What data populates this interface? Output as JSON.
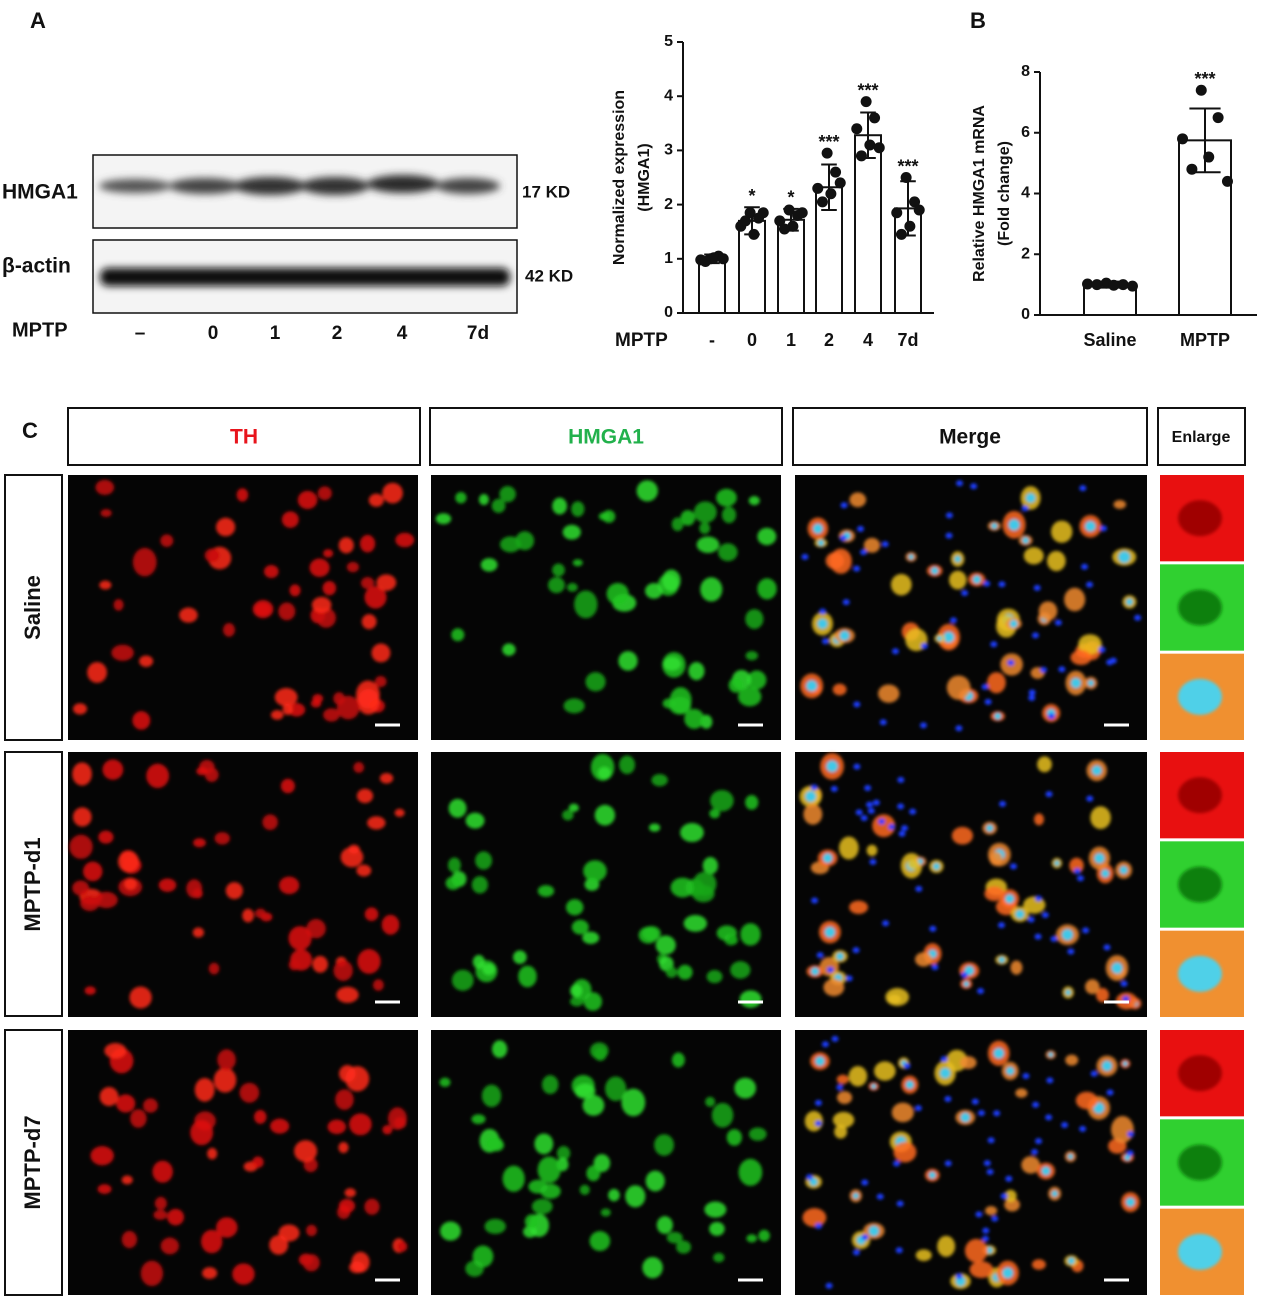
{
  "panel_labels": [
    "A",
    "B",
    "C"
  ],
  "blot": {
    "rows": [
      {
        "name": "HMGA1",
        "size": "17 KD"
      },
      {
        "name": "β-actin",
        "size": "42 KD"
      }
    ],
    "treatment": "MPTP",
    "lanes": [
      "–",
      "0",
      "1",
      "2",
      "4",
      "7d"
    ]
  },
  "chart_data": [
    {
      "type": "bar",
      "ylabel": [
        "Normalized expression",
        "(HMGA1)"
      ],
      "xlabel": "MPTP",
      "categories": [
        "-",
        "0",
        "1",
        "2",
        "4",
        "7d"
      ],
      "values": [
        1.0,
        1.7,
        1.72,
        2.32,
        3.28,
        1.93
      ],
      "errors": [
        0.08,
        0.25,
        0.2,
        0.42,
        0.42,
        0.5
      ],
      "significance": [
        null,
        "*",
        "*",
        "***",
        "***",
        "***"
      ],
      "points": [
        [
          1.0,
          1.05,
          0.98,
          1.02,
          0.95,
          1.0
        ],
        [
          1.85,
          1.75,
          1.6,
          1.45,
          1.7,
          1.85
        ],
        [
          1.9,
          1.8,
          1.7,
          1.6,
          1.55,
          1.85
        ],
        [
          2.95,
          2.6,
          2.3,
          2.2,
          2.05,
          2.4
        ],
        [
          3.9,
          3.6,
          3.4,
          3.1,
          2.9,
          3.05
        ],
        [
          2.5,
          2.05,
          1.85,
          1.6,
          1.45,
          1.9
        ]
      ],
      "color": "#ffffff",
      "ylim": [
        0,
        5
      ],
      "yticks": [
        0,
        1,
        2,
        3,
        4,
        5
      ]
    },
    {
      "type": "bar",
      "ylabel": [
        "Relative HMGA1 mRNA",
        "(Fold change)"
      ],
      "categories": [
        "Saline",
        "MPTP"
      ],
      "values": [
        1.0,
        5.75
      ],
      "errors": [
        0.1,
        1.05
      ],
      "significance": [
        null,
        "***"
      ],
      "points": [
        [
          1.05,
          1.0,
          1.02,
          0.98,
          1.0,
          0.95
        ],
        [
          7.4,
          6.5,
          5.8,
          5.2,
          4.8,
          4.4
        ]
      ],
      "color": "#ffffff",
      "ylim": [
        0,
        8
      ],
      "yticks": [
        0,
        2,
        4,
        6,
        8
      ]
    }
  ],
  "panel_c": {
    "columns": [
      "TH",
      "HMGA1",
      "Merge",
      "Enlarge"
    ],
    "rows": [
      "Saline",
      "MPTP-d1",
      "MPTP-d7"
    ]
  }
}
